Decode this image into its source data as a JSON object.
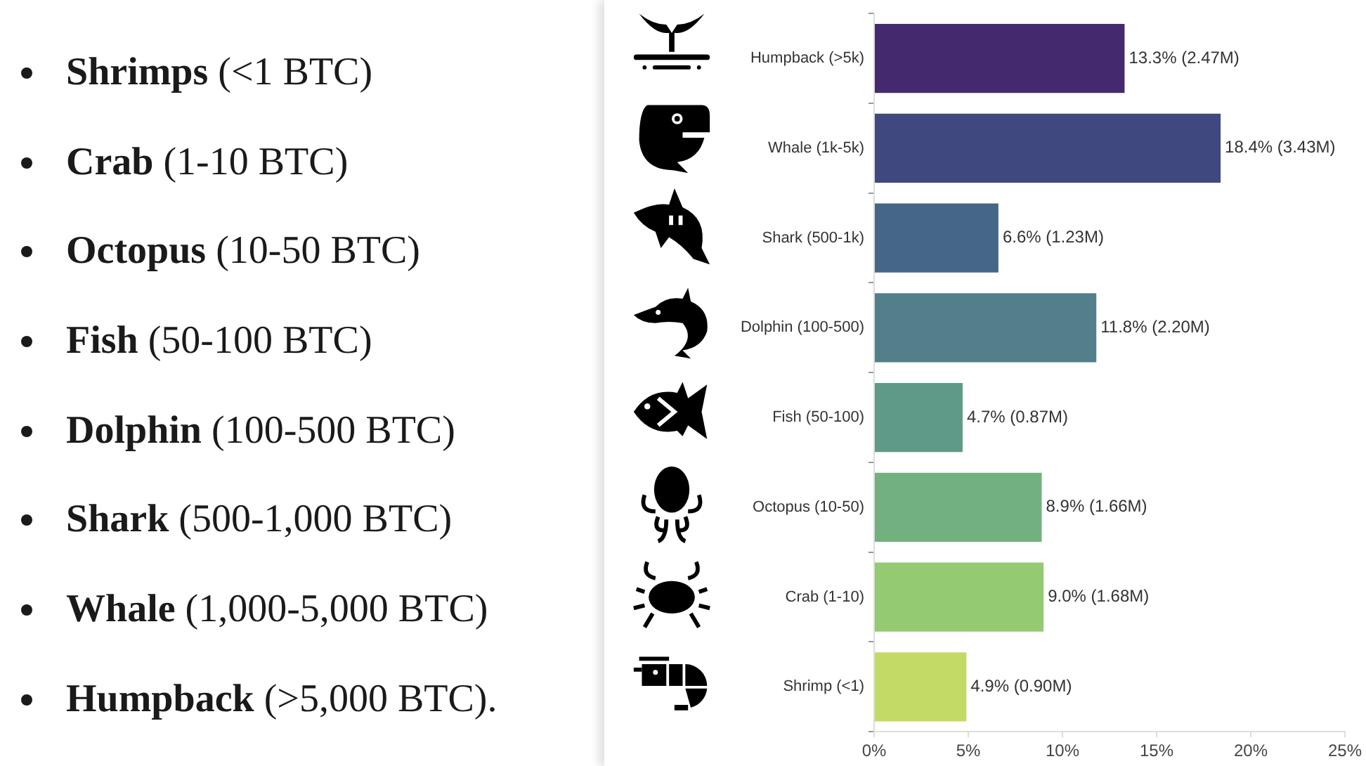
{
  "chart_data": [
    {
      "type": "other",
      "annotations": [
        "Shrimps (<1 BTC)",
        "Crab (1-10 BTC)",
        "Octopus (10-50 BTC)",
        "Fish (50-100 BTC)",
        "Dolphin (100-500 BTC)",
        "Shark (500-1,000 BTC)",
        "Whale (1,000-5,000 BTC)",
        "Humpback (>5,000 BTC)."
      ]
    },
    {
      "type": "bar",
      "orientation": "horizontal",
      "categories": [
        "Humpback (>5k)",
        "Whale (1k-5k)",
        "Shark (500-1k)",
        "Dolphin (100-500)",
        "Fish (50-100)",
        "Octopus (10-50)",
        "Crab (1-10)",
        "Shrimp (<1)"
      ],
      "values": [
        13.3,
        18.4,
        6.6,
        11.8,
        4.7,
        8.9,
        9.0,
        4.9
      ],
      "colors": [
        "#45296f",
        "#3f4980",
        "#456687",
        "#537f8b",
        "#5f9a88",
        "#73b07f",
        "#94ca72",
        "#c4da67"
      ],
      "value_labels": [
        "13.3% (2.47M)",
        "18.4% (3.43M)",
        "6.6% (1.23M)",
        "11.8% (2.20M)",
        "4.7% (0.87M)",
        "8.9% (1.66M)",
        "9.0% (1.68M)",
        "4.9% (0.90M)"
      ],
      "xlim": [
        0,
        25
      ],
      "xticks": [
        {
          "value": 0,
          "label": "0%"
        },
        {
          "value": 5,
          "label": "5%"
        },
        {
          "value": 10,
          "label": "10%"
        },
        {
          "value": 15,
          "label": "15%"
        },
        {
          "value": 20,
          "label": "20%"
        },
        {
          "value": 25,
          "label": "25%"
        }
      ],
      "grid": false,
      "legend": false
    }
  ]
}
